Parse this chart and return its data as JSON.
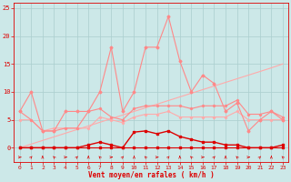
{
  "x": [
    0,
    1,
    2,
    3,
    4,
    5,
    6,
    7,
    8,
    9,
    10,
    11,
    12,
    13,
    14,
    15,
    16,
    17,
    18,
    19,
    20,
    21,
    22,
    23
  ],
  "line_spike": [
    6.5,
    10.0,
    3.0,
    3.0,
    6.5,
    6.5,
    6.5,
    10.0,
    18.0,
    6.5,
    10.0,
    18.0,
    18.0,
    23.5,
    15.5,
    10.0,
    13.0,
    11.5,
    6.5,
    8.0,
    3.0,
    5.0,
    6.5,
    5.0
  ],
  "line_flat_upper": [
    6.5,
    5.0,
    3.0,
    3.0,
    3.5,
    3.5,
    6.5,
    7.0,
    5.5,
    5.0,
    7.0,
    7.5,
    7.5,
    7.5,
    7.5,
    7.0,
    7.5,
    7.5,
    7.5,
    8.5,
    6.0,
    6.0,
    6.5,
    5.5
  ],
  "line_mid": [
    5.0,
    5.0,
    3.0,
    3.5,
    3.5,
    3.5,
    3.5,
    5.5,
    5.0,
    4.5,
    5.5,
    6.0,
    6.0,
    6.5,
    5.5,
    5.5,
    5.5,
    5.5,
    5.5,
    6.5,
    5.0,
    5.0,
    5.0,
    5.0
  ],
  "line_slope": [
    0.0,
    0.65,
    1.3,
    1.95,
    2.6,
    3.25,
    3.9,
    4.55,
    5.2,
    5.85,
    6.5,
    7.15,
    7.8,
    8.45,
    9.1,
    9.75,
    10.4,
    11.05,
    11.7,
    12.35,
    13.0,
    13.65,
    14.3,
    15.0
  ],
  "line_dark_high": [
    0.0,
    0.0,
    0.0,
    0.0,
    0.0,
    0.0,
    0.5,
    1.0,
    0.5,
    0.0,
    2.8,
    3.0,
    2.5,
    3.0,
    2.0,
    1.5,
    1.0,
    1.0,
    0.5,
    0.5,
    0.0,
    0.0,
    0.0,
    0.5
  ],
  "line_dark_flat": [
    0.0,
    0.0,
    0.0,
    0.0,
    0.0,
    0.0,
    0.0,
    0.0,
    0.0,
    0.0,
    0.0,
    0.0,
    0.0,
    0.0,
    0.0,
    0.0,
    0.0,
    0.0,
    0.0,
    0.0,
    0.0,
    0.0,
    0.0,
    0.0
  ],
  "bg_color": "#cce8e8",
  "grid_color": "#aacece",
  "color_light": "#ffaaaa",
  "color_mid": "#ff8888",
  "color_dark": "#dd0000",
  "xlabel": "Vent moyen/en rafales ( km/h )",
  "ylim": [
    -2.5,
    26
  ],
  "xlim": [
    -0.5,
    23.5
  ],
  "yticks": [
    0,
    5,
    10,
    15,
    20,
    25
  ],
  "xticks": [
    0,
    1,
    2,
    3,
    4,
    5,
    6,
    7,
    8,
    9,
    10,
    11,
    12,
    13,
    14,
    15,
    16,
    17,
    18,
    19,
    20,
    21,
    22,
    23
  ]
}
